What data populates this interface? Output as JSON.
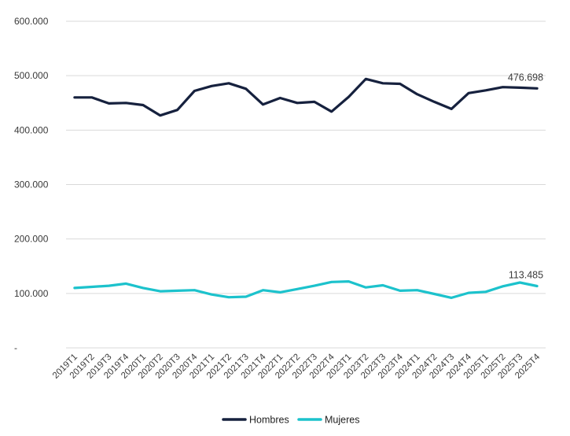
{
  "chart_data": {
    "type": "line",
    "title": "",
    "xlabel": "",
    "ylabel": "",
    "ylim": [
      0,
      600000
    ],
    "y_ticks": [
      0,
      100000,
      200000,
      300000,
      400000,
      500000,
      600000
    ],
    "y_tick_labels": [
      "-",
      "100.000",
      "200.000",
      "300.000",
      "400.000",
      "500.000",
      "600.000"
    ],
    "grid": "horizontal",
    "legend_position": "bottom",
    "categories": [
      "2019T1",
      "2019T2",
      "2019T3",
      "2019T4",
      "2020T1",
      "2020T2",
      "2020T3",
      "2020T4",
      "2021T1",
      "2021T2",
      "2021T3",
      "2021T4",
      "2022T1",
      "2022T2",
      "2022T3",
      "2022T4",
      "2023T1",
      "2023T2",
      "2023T3",
      "2023T4",
      "2024T1",
      "2024T2",
      "2024T3",
      "2024T4",
      "2025T1",
      "2025T2",
      "2025T3",
      "2025T4"
    ],
    "series": [
      {
        "name": "Hombres",
        "color": "#16213e",
        "values": [
          460000,
          460000,
          449000,
          450000,
          446000,
          427000,
          437000,
          472000,
          481000,
          486000,
          476000,
          447000,
          459000,
          450000,
          452000,
          434000,
          461000,
          494000,
          486000,
          485000,
          466000,
          452000,
          439000,
          468000,
          473000,
          479000,
          478000,
          476698
        ],
        "end_label": "476.698"
      },
      {
        "name": "Mujeres",
        "color": "#1cc2cc",
        "values": [
          110000,
          112000,
          114000,
          118000,
          110000,
          104000,
          105000,
          106000,
          98000,
          93000,
          94000,
          106000,
          102000,
          108000,
          114000,
          121000,
          122000,
          111000,
          115000,
          105000,
          106000,
          99000,
          92000,
          101000,
          103000,
          113000,
          120000,
          113485
        ],
        "end_label": "113.485"
      }
    ]
  }
}
